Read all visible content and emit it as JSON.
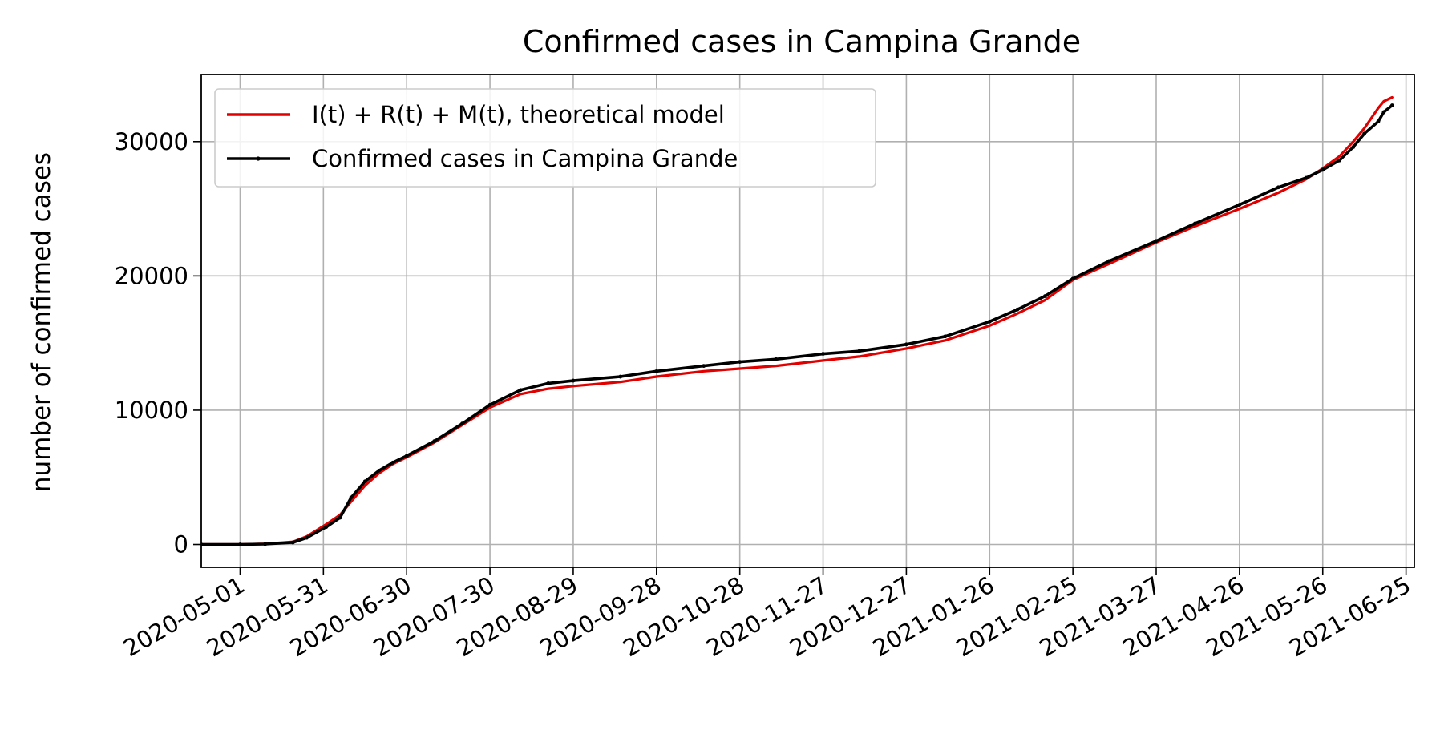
{
  "chart_data": {
    "type": "line",
    "title": "Confirmed cases in Campina Grande",
    "xlabel": "",
    "ylabel": "number of confirmed cases",
    "x_type": "date",
    "xlim": [
      "2020-04-17",
      "2021-06-28"
    ],
    "ylim": [
      -1700,
      35000
    ],
    "x_ticks": [
      "2020-05-01",
      "2020-05-31",
      "2020-06-30",
      "2020-07-30",
      "2020-08-29",
      "2020-09-28",
      "2020-10-28",
      "2020-11-27",
      "2020-12-27",
      "2021-01-26",
      "2021-02-25",
      "2021-03-27",
      "2021-04-26",
      "2021-05-26",
      "2021-06-25"
    ],
    "y_ticks": [
      0,
      10000,
      20000,
      30000
    ],
    "grid": true,
    "legend_position": "upper-left",
    "series": [
      {
        "name": "I(t) + R(t) + M(t), theoretical model",
        "color": "#e00000",
        "x": [
          "2020-04-17",
          "2020-05-01",
          "2020-05-10",
          "2020-05-20",
          "2020-05-25",
          "2020-06-01",
          "2020-06-06",
          "2020-06-10",
          "2020-06-15",
          "2020-06-20",
          "2020-06-25",
          "2020-06-30",
          "2020-07-10",
          "2020-07-20",
          "2020-07-30",
          "2020-08-10",
          "2020-08-20",
          "2020-08-29",
          "2020-09-15",
          "2020-09-28",
          "2020-10-15",
          "2020-10-28",
          "2020-11-10",
          "2020-11-27",
          "2020-12-10",
          "2020-12-27",
          "2021-01-10",
          "2021-01-26",
          "2021-02-05",
          "2021-02-15",
          "2021-02-25",
          "2021-03-10",
          "2021-03-27",
          "2021-04-10",
          "2021-04-26",
          "2021-05-10",
          "2021-05-20",
          "2021-05-26",
          "2021-06-01",
          "2021-06-06",
          "2021-06-10",
          "2021-06-15",
          "2021-06-17",
          "2021-06-20"
        ],
        "values": [
          0,
          0,
          50,
          200,
          600,
          1500,
          2200,
          3200,
          4400,
          5300,
          6000,
          6500,
          7600,
          8900,
          10200,
          11200,
          11600,
          11800,
          12100,
          12500,
          12900,
          13100,
          13300,
          13700,
          14000,
          14600,
          15200,
          16300,
          17200,
          18200,
          19700,
          20900,
          22500,
          23700,
          25000,
          26200,
          27200,
          28000,
          28900,
          30000,
          31000,
          32500,
          33000,
          33300
        ]
      },
      {
        "name": "Confirmed cases in Campina Grande",
        "color": "#000000",
        "x": [
          "2020-04-17",
          "2020-05-01",
          "2020-05-10",
          "2020-05-20",
          "2020-05-25",
          "2020-06-01",
          "2020-06-06",
          "2020-06-10",
          "2020-06-15",
          "2020-06-20",
          "2020-06-25",
          "2020-06-30",
          "2020-07-10",
          "2020-07-20",
          "2020-07-30",
          "2020-08-10",
          "2020-08-20",
          "2020-08-29",
          "2020-09-15",
          "2020-09-28",
          "2020-10-15",
          "2020-10-28",
          "2020-11-10",
          "2020-11-27",
          "2020-12-10",
          "2020-12-27",
          "2021-01-10",
          "2021-01-26",
          "2021-02-05",
          "2021-02-15",
          "2021-02-25",
          "2021-03-10",
          "2021-03-27",
          "2021-04-10",
          "2021-04-26",
          "2021-05-10",
          "2021-05-20",
          "2021-05-26",
          "2021-06-01",
          "2021-06-06",
          "2021-06-10",
          "2021-06-15",
          "2021-06-17",
          "2021-06-20"
        ],
        "values": [
          0,
          0,
          30,
          150,
          500,
          1300,
          2000,
          3500,
          4700,
          5500,
          6100,
          6600,
          7700,
          9000,
          10400,
          11500,
          12000,
          12200,
          12500,
          12900,
          13300,
          13600,
          13800,
          14200,
          14400,
          14900,
          15500,
          16600,
          17500,
          18500,
          19800,
          21100,
          22600,
          23900,
          25300,
          26600,
          27300,
          27900,
          28600,
          29600,
          30600,
          31500,
          32200,
          32700
        ]
      }
    ]
  }
}
